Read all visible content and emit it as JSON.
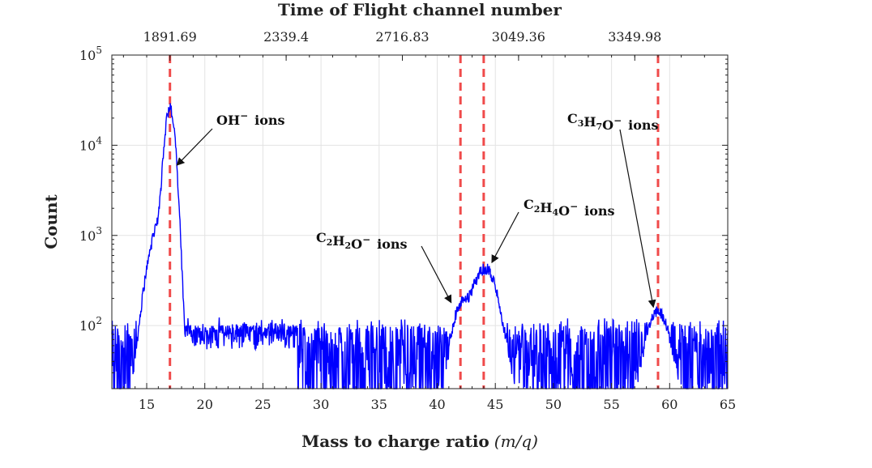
{
  "chart_data": {
    "type": "line",
    "title": "",
    "xlabel": "Mass to charge ratio",
    "xlabel_math": "(m/q)",
    "ylabel": "Count",
    "top_xlabel": "Time of Flight channel number",
    "xlim": [
      12,
      65
    ],
    "ylim": [
      20,
      100000
    ],
    "yscale": "log",
    "grid": true,
    "x_ticks": [
      15,
      20,
      25,
      30,
      35,
      40,
      45,
      50,
      55,
      60,
      65
    ],
    "y_ticks": [
      {
        "value": 100,
        "base": "10",
        "exp": "2"
      },
      {
        "value": 1000,
        "base": "10",
        "exp": "3"
      },
      {
        "value": 10000,
        "base": "10",
        "exp": "4"
      },
      {
        "value": 100000,
        "base": "10",
        "exp": "5"
      }
    ],
    "top_ticks": [
      {
        "label": "1891.69",
        "mz": 17
      },
      {
        "label": "2339.4",
        "mz": 27
      },
      {
        "label": "2716.83",
        "mz": 37
      },
      {
        "label": "3049.36",
        "mz": 47
      },
      {
        "label": "3349.98",
        "mz": 57
      }
    ],
    "series_color": "#0000ff",
    "marker_color": "#f04a4a",
    "markers": [
      17,
      42,
      44,
      59
    ],
    "noise_floor": 60,
    "peaks": [
      {
        "mz": 17,
        "height": 25000,
        "width": 0.35
      },
      {
        "mz": 16.2,
        "height": 1300,
        "width": 0.8
      },
      {
        "mz": 42,
        "height": 140,
        "width": 0.6
      },
      {
        "mz": 44.1,
        "height": 420,
        "width": 0.9
      },
      {
        "mz": 59,
        "height": 130,
        "width": 0.8
      }
    ],
    "annotations": [
      {
        "formula": [
          [
            "OH",
            ""
          ]
        ],
        "charge": "−",
        "suffix": "ions",
        "mz": 17.6,
        "count": 6000
      },
      {
        "formula": [
          [
            "C",
            "2"
          ],
          [
            "H",
            "2"
          ],
          [
            "O",
            ""
          ]
        ],
        "charge": "−",
        "suffix": "ions",
        "mz": 41.2,
        "count": 180
      },
      {
        "formula": [
          [
            "C",
            "2"
          ],
          [
            "H",
            "4"
          ],
          [
            "O",
            ""
          ]
        ],
        "charge": "−",
        "suffix": "ions",
        "mz": 44.7,
        "count": 500
      },
      {
        "formula": [
          [
            "C",
            "3"
          ],
          [
            "H",
            "7"
          ],
          [
            "O",
            ""
          ]
        ],
        "charge": "−",
        "suffix": "ions",
        "mz": 58.6,
        "count": 160
      }
    ]
  }
}
